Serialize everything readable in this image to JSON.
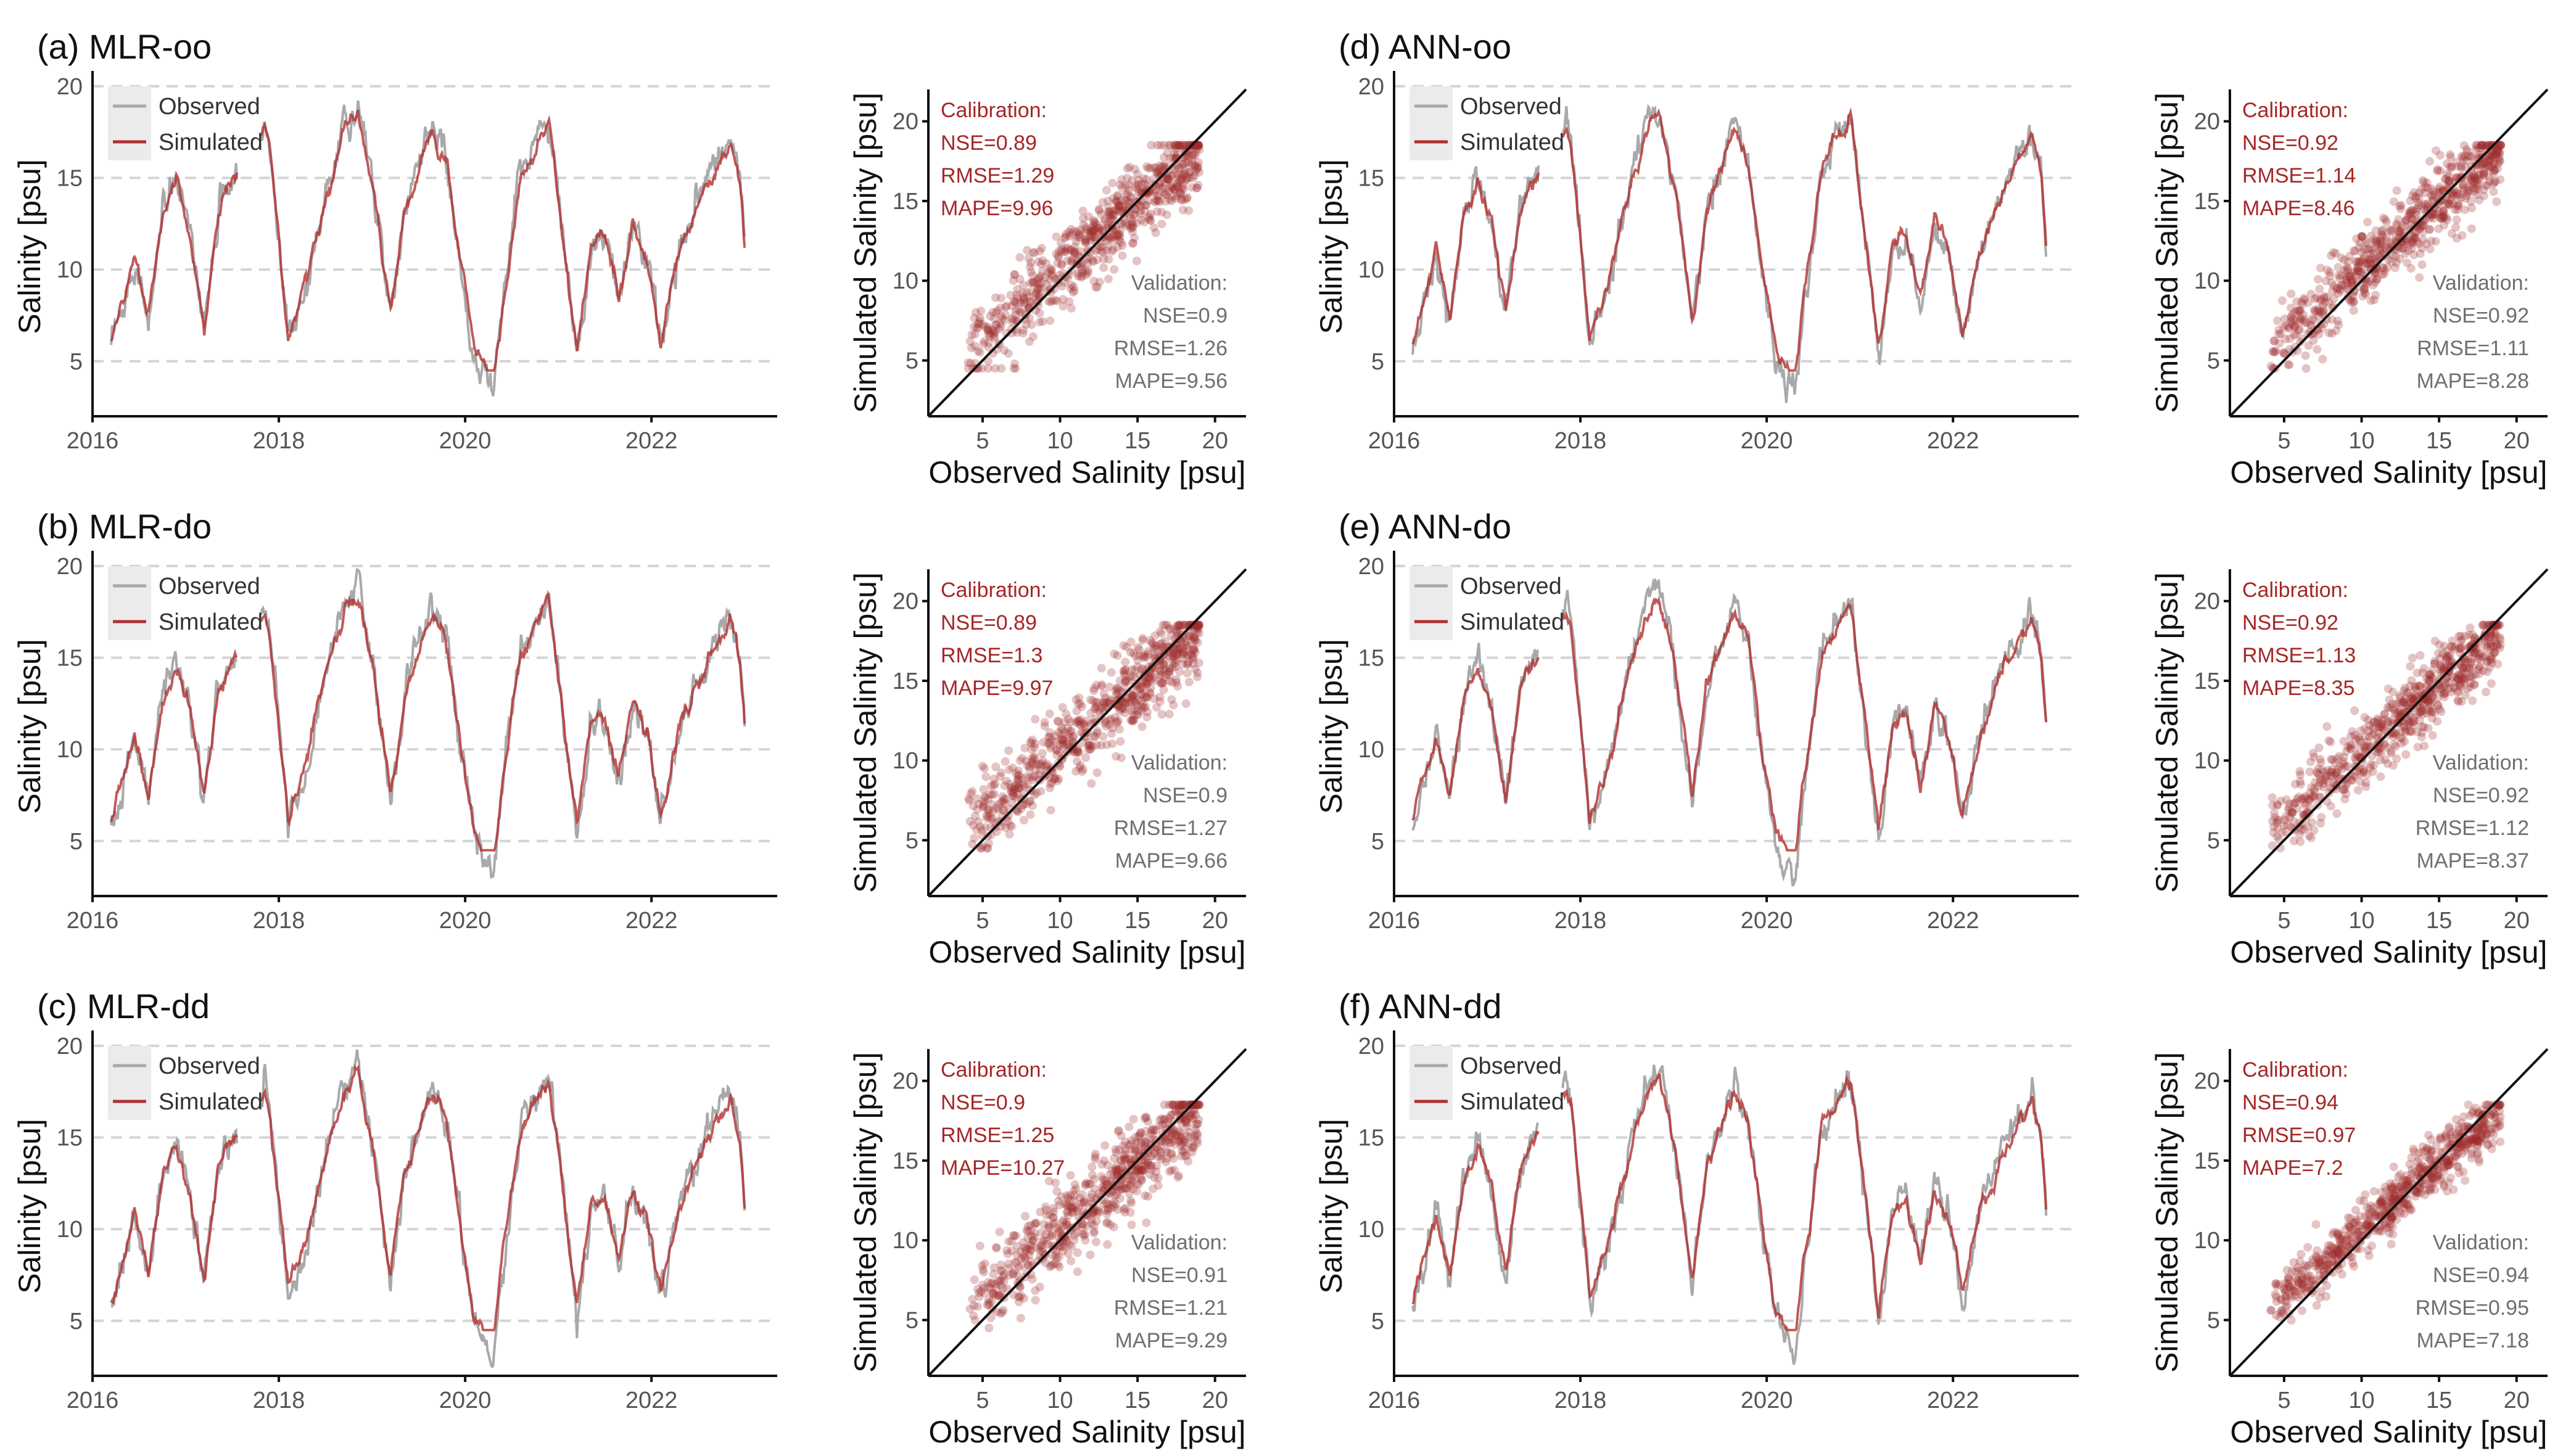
{
  "colors": {
    "observed": "#a9a9a9",
    "simulated": "#b03030",
    "calibration_text": "#a62626",
    "validation_text": "#6f6f6f",
    "grid": "#d4d4d4",
    "scatter_point": "#9e2a2a"
  },
  "legend": {
    "observed": "Observed",
    "simulated": "Simulated"
  },
  "chart_data": [
    {
      "type": "line",
      "id": "a",
      "title": "(a) MLR-oo",
      "ylabel": "Salinity [psu]",
      "xlabel": "",
      "x_ticks": [
        "2016",
        "2018",
        "2020",
        "2022"
      ],
      "y_ticks": [
        5,
        10,
        15,
        20
      ],
      "xlim": [
        2016.0,
        2023.35
      ],
      "ylim": [
        2,
        20.5
      ],
      "series": [
        {
          "name": "Observed"
        },
        {
          "name": "Simulated"
        }
      ]
    },
    {
      "type": "scatter",
      "id": "a-scatter",
      "xlabel": "Observed Salinity [psu]",
      "ylabel": "Simulated Salinity [psu]",
      "x_ticks": [
        5,
        10,
        15,
        20
      ],
      "y_ticks": [
        5,
        10,
        15,
        20
      ],
      "xlim": [
        1.5,
        22
      ],
      "ylim": [
        1.5,
        22
      ],
      "calibration": {
        "header": "Calibration:",
        "nse": "NSE=0.89",
        "rmse": "RMSE=1.29",
        "mape": "MAPE=9.96"
      },
      "validation": {
        "header": "Validation:",
        "nse": "NSE=0.9",
        "rmse": "RMSE=1.26",
        "mape": "MAPE=9.56"
      },
      "spread": 1.7
    },
    {
      "type": "line",
      "id": "b",
      "title": "(b) MLR-do",
      "ylabel": "Salinity [psu]",
      "xlabel": "",
      "x_ticks": [
        "2016",
        "2018",
        "2020",
        "2022"
      ],
      "y_ticks": [
        5,
        10,
        15,
        20
      ],
      "xlim": [
        2016.0,
        2023.35
      ],
      "ylim": [
        2,
        20.5
      ],
      "series": [
        {
          "name": "Observed"
        },
        {
          "name": "Simulated"
        }
      ]
    },
    {
      "type": "scatter",
      "id": "b-scatter",
      "xlabel": "Observed Salinity [psu]",
      "ylabel": "Simulated Salinity [psu]",
      "x_ticks": [
        5,
        10,
        15,
        20
      ],
      "y_ticks": [
        5,
        10,
        15,
        20
      ],
      "xlim": [
        1.5,
        22
      ],
      "ylim": [
        1.5,
        22
      ],
      "calibration": {
        "header": "Calibration:",
        "nse": "NSE=0.89",
        "rmse": "RMSE=1.3",
        "mape": "MAPE=9.97"
      },
      "validation": {
        "header": "Validation:",
        "nse": "NSE=0.9",
        "rmse": "RMSE=1.27",
        "mape": "MAPE=9.66"
      },
      "spread": 1.7
    },
    {
      "type": "line",
      "id": "c",
      "title": "(c) MLR-dd",
      "ylabel": "Salinity [psu]",
      "xlabel": "",
      "x_ticks": [
        "2016",
        "2018",
        "2020",
        "2022"
      ],
      "y_ticks": [
        5,
        10,
        15,
        20
      ],
      "xlim": [
        2016.0,
        2023.35
      ],
      "ylim": [
        2,
        20.5
      ],
      "series": [
        {
          "name": "Observed"
        },
        {
          "name": "Simulated"
        }
      ]
    },
    {
      "type": "scatter",
      "id": "c-scatter",
      "xlabel": "Observed Salinity [psu]",
      "ylabel": "Simulated Salinity [psu]",
      "x_ticks": [
        5,
        10,
        15,
        20
      ],
      "y_ticks": [
        5,
        10,
        15,
        20
      ],
      "xlim": [
        1.5,
        22
      ],
      "ylim": [
        1.5,
        22
      ],
      "calibration": {
        "header": "Calibration:",
        "nse": "NSE=0.9",
        "rmse": "RMSE=1.25",
        "mape": "MAPE=10.27"
      },
      "validation": {
        "header": "Validation:",
        "nse": "NSE=0.91",
        "rmse": "RMSE=1.21",
        "mape": "MAPE=9.29"
      },
      "spread": 1.6
    },
    {
      "type": "line",
      "id": "d",
      "title": "(d) ANN-oo",
      "ylabel": "Salinity [psu]",
      "xlabel": "",
      "x_ticks": [
        "2016",
        "2018",
        "2020",
        "2022"
      ],
      "y_ticks": [
        5,
        10,
        15,
        20
      ],
      "xlim": [
        2016.0,
        2023.35
      ],
      "ylim": [
        2,
        20.5
      ],
      "series": [
        {
          "name": "Observed"
        },
        {
          "name": "Simulated"
        }
      ]
    },
    {
      "type": "scatter",
      "id": "d-scatter",
      "xlabel": "Observed Salinity [psu]",
      "ylabel": "Simulated Salinity [psu]",
      "x_ticks": [
        5,
        10,
        15,
        20
      ],
      "y_ticks": [
        5,
        10,
        15,
        20
      ],
      "xlim": [
        1.5,
        22
      ],
      "ylim": [
        1.5,
        22
      ],
      "calibration": {
        "header": "Calibration:",
        "nse": "NSE=0.92",
        "rmse": "RMSE=1.14",
        "mape": "MAPE=8.46"
      },
      "validation": {
        "header": "Validation:",
        "nse": "NSE=0.92",
        "rmse": "RMSE=1.11",
        "mape": "MAPE=8.28"
      },
      "spread": 1.4
    },
    {
      "type": "line",
      "id": "e",
      "title": "(e) ANN-do",
      "ylabel": "Salinity [psu]",
      "xlabel": "",
      "x_ticks": [
        "2016",
        "2018",
        "2020",
        "2022"
      ],
      "y_ticks": [
        5,
        10,
        15,
        20
      ],
      "xlim": [
        2016.0,
        2023.35
      ],
      "ylim": [
        2,
        20.5
      ],
      "series": [
        {
          "name": "Observed"
        },
        {
          "name": "Simulated"
        }
      ]
    },
    {
      "type": "scatter",
      "id": "e-scatter",
      "xlabel": "Observed Salinity [psu]",
      "ylabel": "Simulated Salinity [psu]",
      "x_ticks": [
        5,
        10,
        15,
        20
      ],
      "y_ticks": [
        5,
        10,
        15,
        20
      ],
      "xlim": [
        1.5,
        22
      ],
      "ylim": [
        1.5,
        22
      ],
      "calibration": {
        "header": "Calibration:",
        "nse": "NSE=0.92",
        "rmse": "RMSE=1.13",
        "mape": "MAPE=8.35"
      },
      "validation": {
        "header": "Validation:",
        "nse": "NSE=0.92",
        "rmse": "RMSE=1.12",
        "mape": "MAPE=8.37"
      },
      "spread": 1.4
    },
    {
      "type": "line",
      "id": "f",
      "title": "(f) ANN-dd",
      "ylabel": "Salinity [psu]",
      "xlabel": "",
      "x_ticks": [
        "2016",
        "2018",
        "2020",
        "2022"
      ],
      "y_ticks": [
        5,
        10,
        15,
        20
      ],
      "xlim": [
        2016.0,
        2023.35
      ],
      "ylim": [
        2,
        20.5
      ],
      "series": [
        {
          "name": "Observed"
        },
        {
          "name": "Simulated"
        }
      ]
    },
    {
      "type": "scatter",
      "id": "f-scatter",
      "xlabel": "Observed Salinity [psu]",
      "ylabel": "Simulated Salinity [psu]",
      "x_ticks": [
        5,
        10,
        15,
        20
      ],
      "y_ticks": [
        5,
        10,
        15,
        20
      ],
      "xlim": [
        1.5,
        22
      ],
      "ylim": [
        1.5,
        22
      ],
      "calibration": {
        "header": "Calibration:",
        "nse": "NSE=0.94",
        "rmse": "RMSE=0.97",
        "mape": "MAPE=7.2"
      },
      "validation": {
        "header": "Validation:",
        "nse": "NSE=0.94",
        "rmse": "RMSE=0.95",
        "mape": "MAPE=7.18"
      },
      "spread": 1.1
    }
  ],
  "observed_envelope": {
    "t": [
      2016.2,
      2016.3,
      2016.45,
      2016.6,
      2016.75,
      2016.9,
      2017.05,
      2017.2,
      2017.35,
      2017.5,
      2017.85,
      2017.9,
      2018.1,
      2018.3,
      2018.5,
      2018.7,
      2018.85,
      2019.0,
      2019.2,
      2019.35,
      2019.5,
      2019.65,
      2019.8,
      2019.95,
      2020.1,
      2020.3,
      2020.4,
      2020.6,
      2020.75,
      2020.9,
      2021.05,
      2021.2,
      2021.35,
      2021.5,
      2021.65,
      2021.8,
      2021.95,
      2022.1,
      2022.3,
      2022.5,
      2022.7,
      2022.85,
      2022.95,
      2023.0
    ],
    "y": [
      5.5,
      7.5,
      10.8,
      7.0,
      13.0,
      15.0,
      12.0,
      7.0,
      13.5,
      15.0,
      18.0,
      17.0,
      6.0,
      9.0,
      14.0,
      18.0,
      19.0,
      15.0,
      7.0,
      13.0,
      15.5,
      18.0,
      16.0,
      10.0,
      5.0,
      3.0,
      8.0,
      15.5,
      17.0,
      18.5,
      12.0,
      5.0,
      11.0,
      12.0,
      8.0,
      12.5,
      10.5,
      6.0,
      11.0,
      14.0,
      16.0,
      17.5,
      15.0,
      11.0
    ]
  },
  "gaps": [
    [
      2017.55,
      2017.8
    ]
  ]
}
